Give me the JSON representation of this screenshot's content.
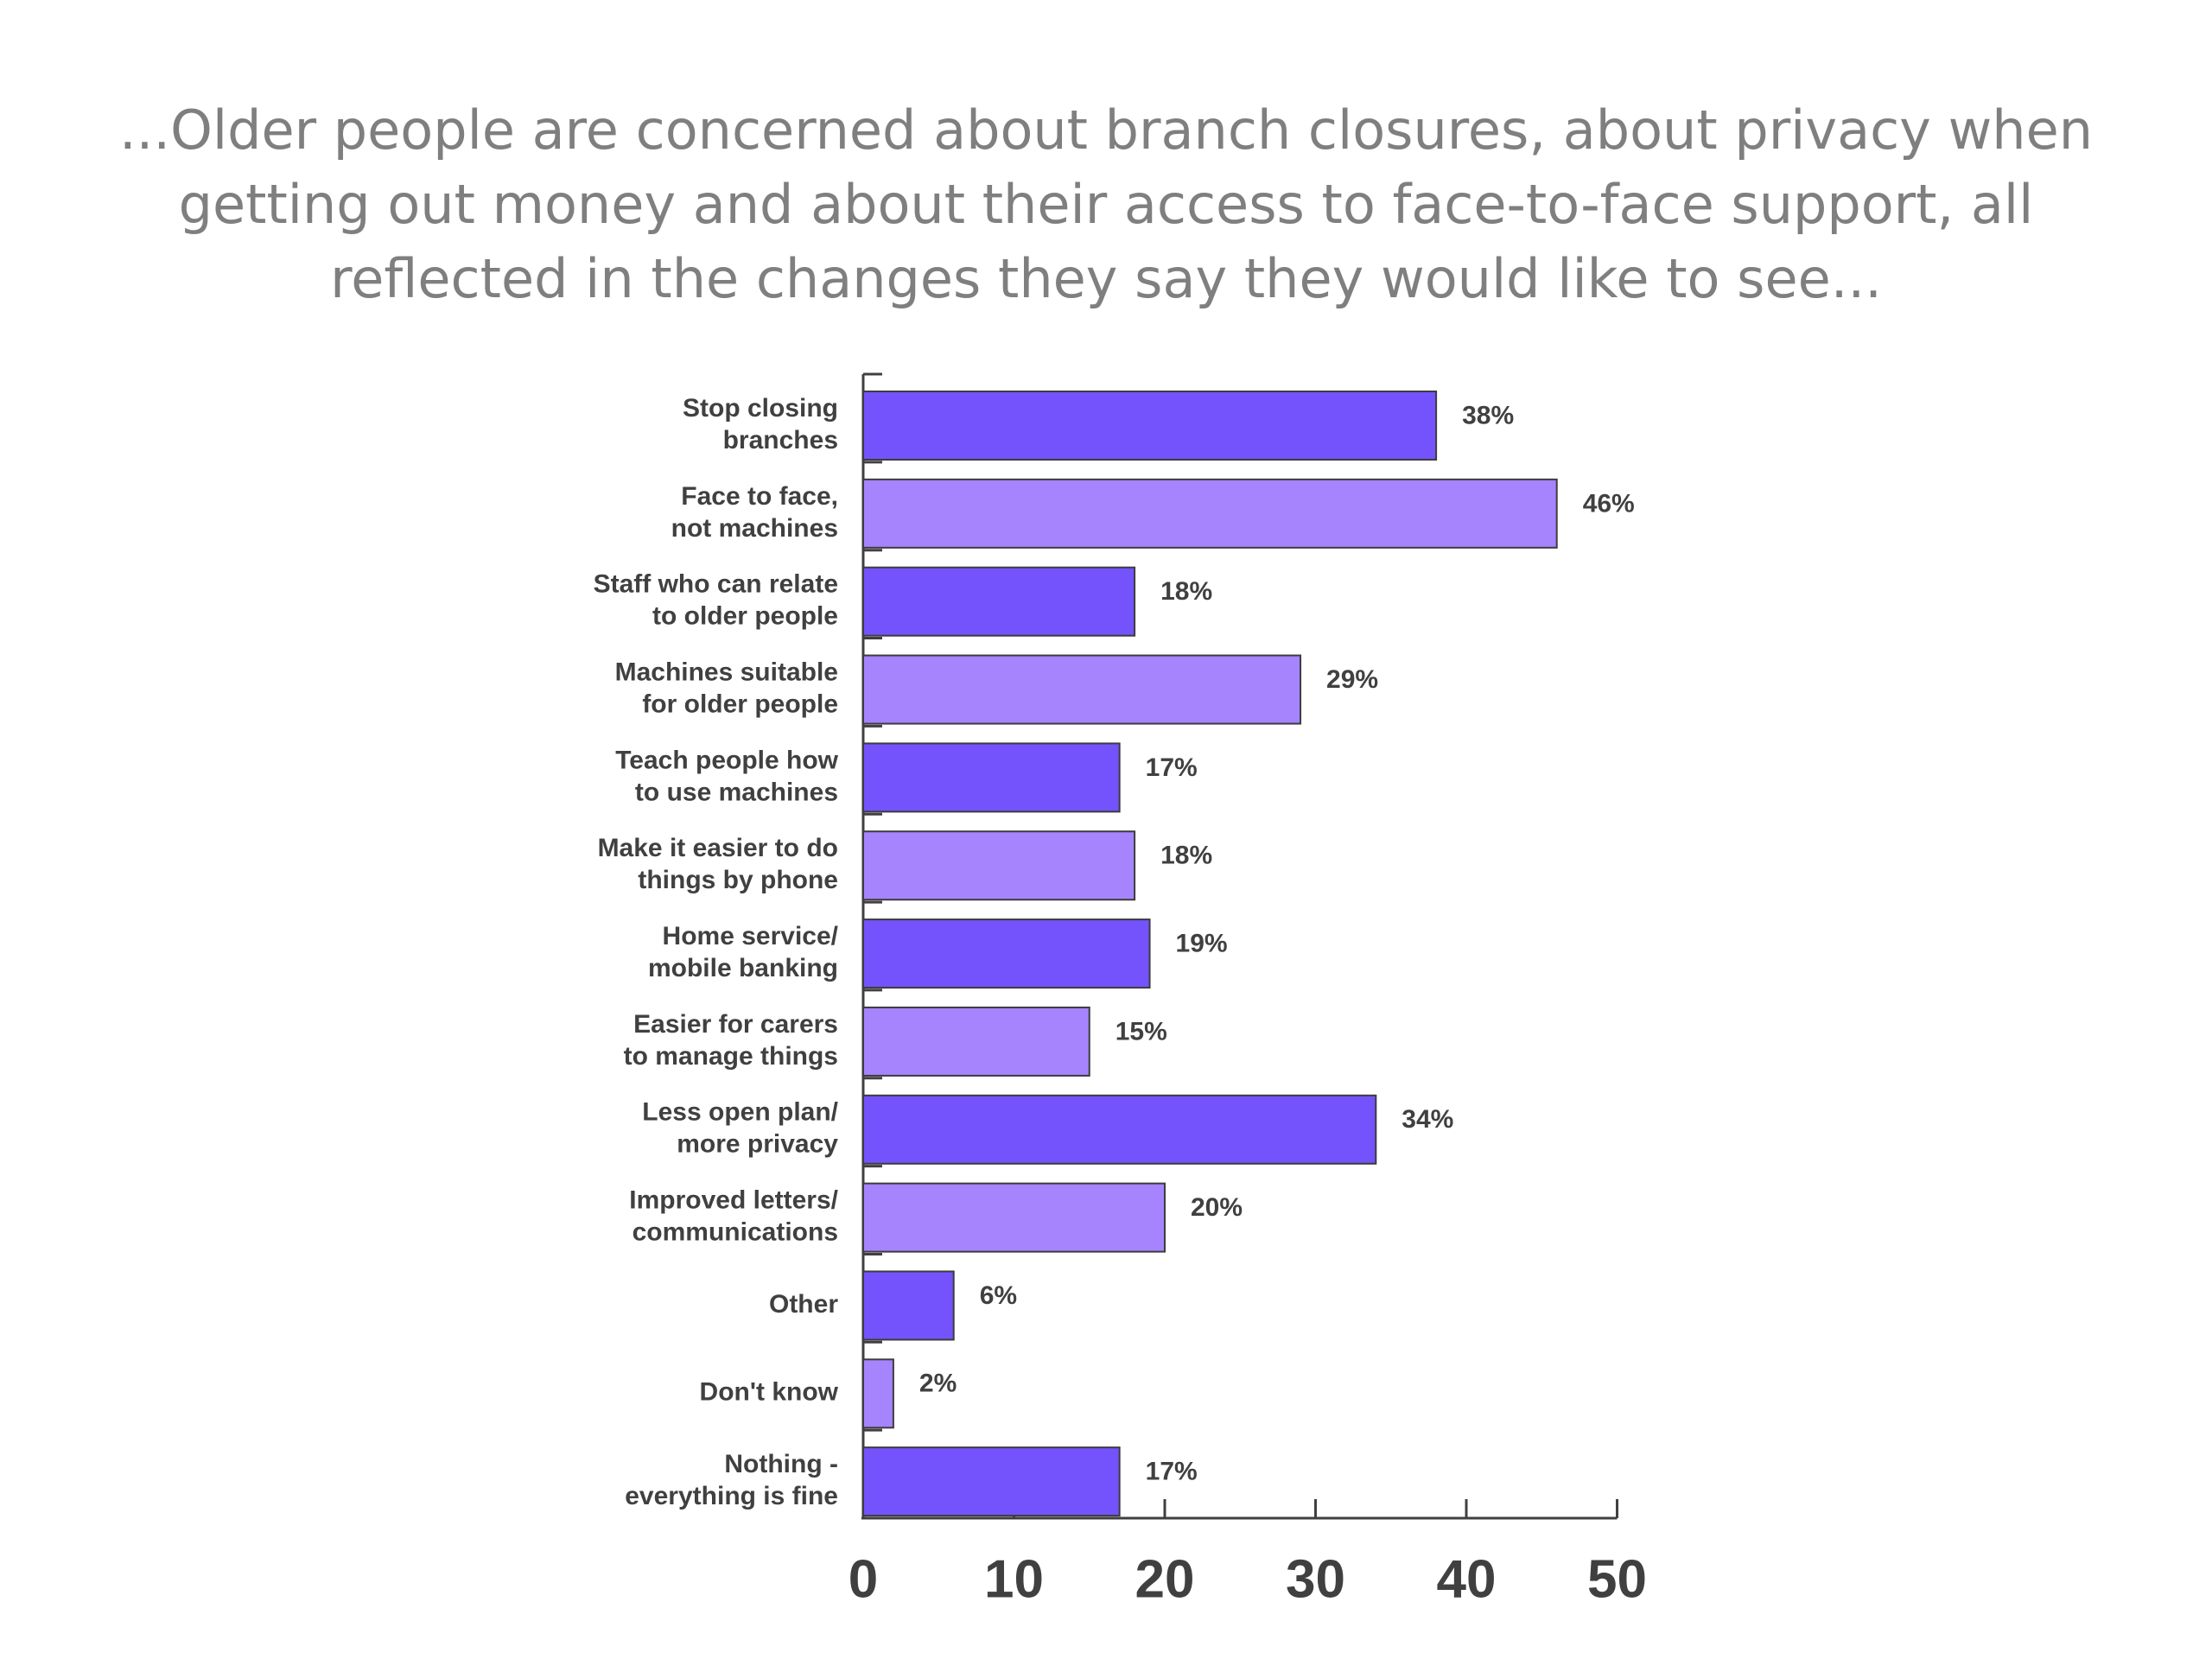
{
  "slide": {
    "title": "...Older people are concerned about branch closures, about privacy when getting out money and about their access to face-to-face support, all reflected in the changes they say they would like to see..."
  },
  "chart_data": {
    "type": "bar",
    "orientation": "horizontal",
    "categories": [
      [
        "Stop closing",
        "branches"
      ],
      [
        "Face to face,",
        "not machines"
      ],
      [
        "Staff who can relate",
        "to older people"
      ],
      [
        "Machines suitable",
        "for older people"
      ],
      [
        "Teach people how",
        "to use machines"
      ],
      [
        "Make it easier to do",
        "things by phone"
      ],
      [
        "Home service/",
        "mobile banking"
      ],
      [
        "Easier for carers",
        "to manage things"
      ],
      [
        "Less open plan/",
        "more privacy"
      ],
      [
        "Improved letters/",
        "communications"
      ],
      [
        "Other"
      ],
      [
        "Don't know"
      ],
      [
        "Nothing -",
        "everything is fine"
      ]
    ],
    "values": [
      38,
      46,
      18,
      29,
      17,
      18,
      19,
      15,
      34,
      20,
      6,
      2,
      17
    ],
    "value_labels": [
      "38%",
      "46%",
      "18%",
      "29%",
      "17%",
      "18%",
      "19%",
      "15%",
      "34%",
      "20%",
      "6%",
      "2%",
      "17%"
    ],
    "xlim": [
      0,
      50
    ],
    "xticks": [
      "0",
      "10",
      "20",
      "30",
      "40",
      "50"
    ],
    "grid": false,
    "colors": {
      "odd_bars": "#7453fc",
      "even_bars": "#a684fd",
      "bar_outline": "#3c3c3c",
      "axis": "#404040"
    }
  }
}
